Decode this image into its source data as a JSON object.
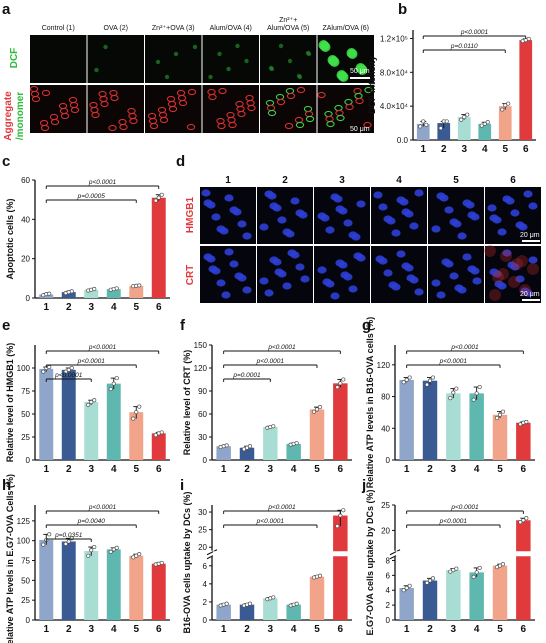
{
  "panel_labels": [
    "a",
    "b",
    "c",
    "d",
    "e",
    "f",
    "g",
    "h",
    "i",
    "j"
  ],
  "colors": [
    "#8fa5c9",
    "#3a5a93",
    "#a8ddd4",
    "#5fb8b0",
    "#f2a48a",
    "#e03a3c"
  ],
  "micro_a": {
    "columns": [
      "Control (1)",
      "OVA (2)",
      "Zn²⁺+OVA (3)",
      "Alum/OVA (4)",
      "Zn²⁺+ Alum/OVA (5)",
      "ZAlum/OVA (6)"
    ],
    "column5_line1": "Zn²⁺+",
    "column5_line2": "Alum/OVA (5)",
    "row1_label": "DCF",
    "row2_label_a": "Aggregate",
    "row2_label_b": "/monomer",
    "scale": "50 μm"
  },
  "micro_d": {
    "columns": [
      "1",
      "2",
      "3",
      "4",
      "5",
      "6"
    ],
    "row1_label": "HMGB1",
    "row2_label": "CRT",
    "scale": "20 μm"
  },
  "chart_data": [
    {
      "panel": "b",
      "type": "bar",
      "categories": [
        "1",
        "2",
        "3",
        "4",
        "5",
        "6"
      ],
      "values": [
        19000,
        20000,
        27000,
        19000,
        40000,
        118000
      ],
      "points": [
        [
          16000,
          22000,
          18000
        ],
        [
          14000,
          22000,
          22000
        ],
        [
          24000,
          27000,
          30000
        ],
        [
          17000,
          19000,
          21000
        ],
        [
          36000,
          41000,
          43000
        ],
        [
          117000,
          118000,
          119500
        ]
      ],
      "ylabel": "DCF intensity",
      "ylim": [
        0,
        130000
      ],
      "yticks": [
        0,
        40000,
        80000,
        120000
      ],
      "ytick_labels": [
        "0.0",
        "4.0×10⁴",
        "8.0×10⁴",
        "1.2×10⁵"
      ],
      "brackets": [
        {
          "from": "1",
          "to": "6",
          "label": "p<0.0001"
        },
        {
          "from": "1",
          "to": "5",
          "label": "p=0.0110"
        }
      ]
    },
    {
      "panel": "c",
      "type": "bar",
      "categories": [
        "1",
        "2",
        "3",
        "4",
        "5",
        "6"
      ],
      "values": [
        1.8,
        3,
        4.2,
        4.5,
        6.2,
        51
      ],
      "points": [
        [
          1.4,
          2.0,
          2.2
        ],
        [
          2.5,
          3.0,
          3.4
        ],
        [
          3.8,
          4.2,
          4.6
        ],
        [
          4.2,
          4.5,
          4.9
        ],
        [
          6.0,
          6.2,
          6.4
        ],
        [
          49.5,
          51,
          52.5
        ]
      ],
      "ylabel": "Apoptotic cells (%)",
      "ylim": [
        0,
        60
      ],
      "yticks": [
        0,
        20,
        40,
        60
      ],
      "ytick_labels": [
        "0",
        "20",
        "40",
        "60"
      ],
      "brackets": [
        {
          "from": "1",
          "to": "6",
          "label": "p<0.0001"
        },
        {
          "from": "1",
          "to": "5",
          "label": "p=0.0005"
        }
      ]
    },
    {
      "panel": "e",
      "type": "bar",
      "categories": [
        "1",
        "2",
        "3",
        "4",
        "5",
        "6"
      ],
      "values": [
        99,
        98,
        63,
        83,
        52,
        29
      ],
      "points": [
        [
          96,
          100,
          101
        ],
        [
          96,
          98,
          100
        ],
        [
          60,
          63,
          65
        ],
        [
          77,
          83,
          89
        ],
        [
          45,
          52,
          58
        ],
        [
          27,
          29,
          30
        ]
      ],
      "ylabel": "Relative level of HMGB1 (%)",
      "ylim": [
        0,
        125
      ],
      "yticks": [
        0,
        25,
        50,
        75,
        100
      ],
      "ytick_labels": [
        "0",
        "25",
        "50",
        "75",
        "100"
      ],
      "brackets": [
        {
          "from": "1",
          "to": "6",
          "label": "p<0.0001"
        },
        {
          "from": "1",
          "to": "5",
          "label": "p<0.0001"
        },
        {
          "from": "1",
          "to": "3",
          "label": "p<0.0001"
        }
      ]
    },
    {
      "panel": "f",
      "type": "bar",
      "categories": [
        "1",
        "2",
        "3",
        "4",
        "5",
        "6"
      ],
      "values": [
        18,
        16,
        43,
        21,
        66,
        100
      ],
      "points": [
        [
          17,
          18,
          19
        ],
        [
          14,
          16,
          18
        ],
        [
          42,
          43,
          44
        ],
        [
          20,
          21,
          22
        ],
        [
          63,
          66,
          69
        ],
        [
          95,
          100,
          105
        ]
      ],
      "ylabel": "Relative level of CRT (%)",
      "ylim": [
        0,
        150
      ],
      "yticks": [
        0,
        30,
        60,
        90,
        120,
        150
      ],
      "ytick_labels": [
        "0",
        "30",
        "60",
        "90",
        "120",
        "150"
      ],
      "brackets": [
        {
          "from": "1",
          "to": "6",
          "label": "p<0.0001"
        },
        {
          "from": "1",
          "to": "5",
          "label": "p<0.0001"
        },
        {
          "from": "1",
          "to": "3",
          "label": "p=0.0001"
        }
      ]
    },
    {
      "panel": "g",
      "type": "bar",
      "categories": [
        "1",
        "2",
        "3",
        "4",
        "5",
        "6"
      ],
      "values": [
        101,
        100,
        84,
        84,
        57,
        47
      ],
      "points": [
        [
          98,
          101,
          104
        ],
        [
          95,
          100,
          104
        ],
        [
          78,
          85,
          90
        ],
        [
          76,
          84,
          92
        ],
        [
          53,
          57,
          61
        ],
        [
          45,
          47,
          48
        ]
      ],
      "ylabel": "Relative ATP levels in B16-OVA cells (%)",
      "ylim": [
        0,
        145
      ],
      "yticks": [
        0,
        40,
        80,
        120
      ],
      "ytick_labels": [
        "0",
        "40",
        "80",
        "120"
      ],
      "brackets": [
        {
          "from": "1",
          "to": "6",
          "label": "p<0.0001"
        },
        {
          "from": "1",
          "to": "5",
          "label": "p<0.0001"
        }
      ]
    },
    {
      "panel": "h",
      "type": "bar",
      "categories": [
        "1",
        "2",
        "3",
        "4",
        "5",
        "6"
      ],
      "values": [
        101,
        99,
        87,
        89,
        81,
        71
      ],
      "points": [
        [
          95,
          101,
          108
        ],
        [
          96,
          99,
          103
        ],
        [
          81,
          88,
          92
        ],
        [
          86,
          89,
          91
        ],
        [
          79,
          81,
          83
        ],
        [
          70,
          71,
          72
        ]
      ],
      "ylabel": "Relative ATP levels in E.G7-OVA Cells (%)",
      "ylim": [
        0,
        145
      ],
      "yticks": [
        0,
        25,
        50,
        75,
        100,
        125
      ],
      "ytick_labels": [
        "0",
        "25",
        "50",
        "75",
        "100",
        "125"
      ],
      "brackets": [
        {
          "from": "1",
          "to": "6",
          "label": "p<0.0001"
        },
        {
          "from": "1",
          "to": "5",
          "label": "p=0.0040"
        },
        {
          "from": "1",
          "to": "3",
          "label": "p=0.0351"
        }
      ]
    },
    {
      "panel": "i",
      "type": "bar",
      "categories": [
        "1",
        "2",
        "3",
        "4",
        "5",
        "6"
      ],
      "values": [
        1.7,
        1.7,
        2.4,
        1.7,
        4.8,
        29
      ],
      "points": [
        [
          1.6,
          1.7,
          1.8
        ],
        [
          1.6,
          1.7,
          1.8
        ],
        [
          2.3,
          2.4,
          2.5
        ],
        [
          1.6,
          1.7,
          1.8
        ],
        [
          4.7,
          4.8,
          4.9
        ],
        [
          26,
          29,
          30.5
        ]
      ],
      "ylabel": "B16-OVA cells uptake by DCs (%)",
      "ylim": [
        0,
        32
      ],
      "broken_axis": [
        7,
        19
      ],
      "yticks": [
        0,
        2,
        4,
        6,
        20,
        25,
        30
      ],
      "ytick_labels": [
        "0",
        "2",
        "4",
        "6",
        "20",
        "25",
        "30"
      ],
      "brackets": [
        {
          "from": "1",
          "to": "6",
          "label": "p<0.0001"
        },
        {
          "from": "1",
          "to": "5",
          "label": "p<0.0001"
        }
      ]
    },
    {
      "panel": "j",
      "type": "bar",
      "categories": [
        "1",
        "2",
        "3",
        "4",
        "5",
        "6"
      ],
      "values": [
        4.3,
        5.3,
        6.7,
        6.4,
        7.3,
        22
      ],
      "points": [
        [
          4.0,
          4.3,
          4.6
        ],
        [
          5.0,
          5.3,
          5.6
        ],
        [
          6.5,
          6.7,
          6.9
        ],
        [
          5.8,
          6.4,
          7.0
        ],
        [
          7.1,
          7.3,
          7.5
        ],
        [
          21.6,
          22,
          22.4
        ]
      ],
      "ylabel": "E.G7-OVA cells uptake by DCs (%)",
      "ylim": [
        0,
        25
      ],
      "broken_axis": [
        8.5,
        16
      ],
      "yticks": [
        0,
        2,
        4,
        6,
        8,
        20,
        25
      ],
      "ytick_labels": [
        "0",
        "2",
        "4",
        "6",
        "8",
        "20",
        "25"
      ],
      "brackets": [
        {
          "from": "1",
          "to": "6",
          "label": "p<0.0001"
        },
        {
          "from": "1",
          "to": "5",
          "label": "p<0.0001"
        }
      ]
    }
  ]
}
